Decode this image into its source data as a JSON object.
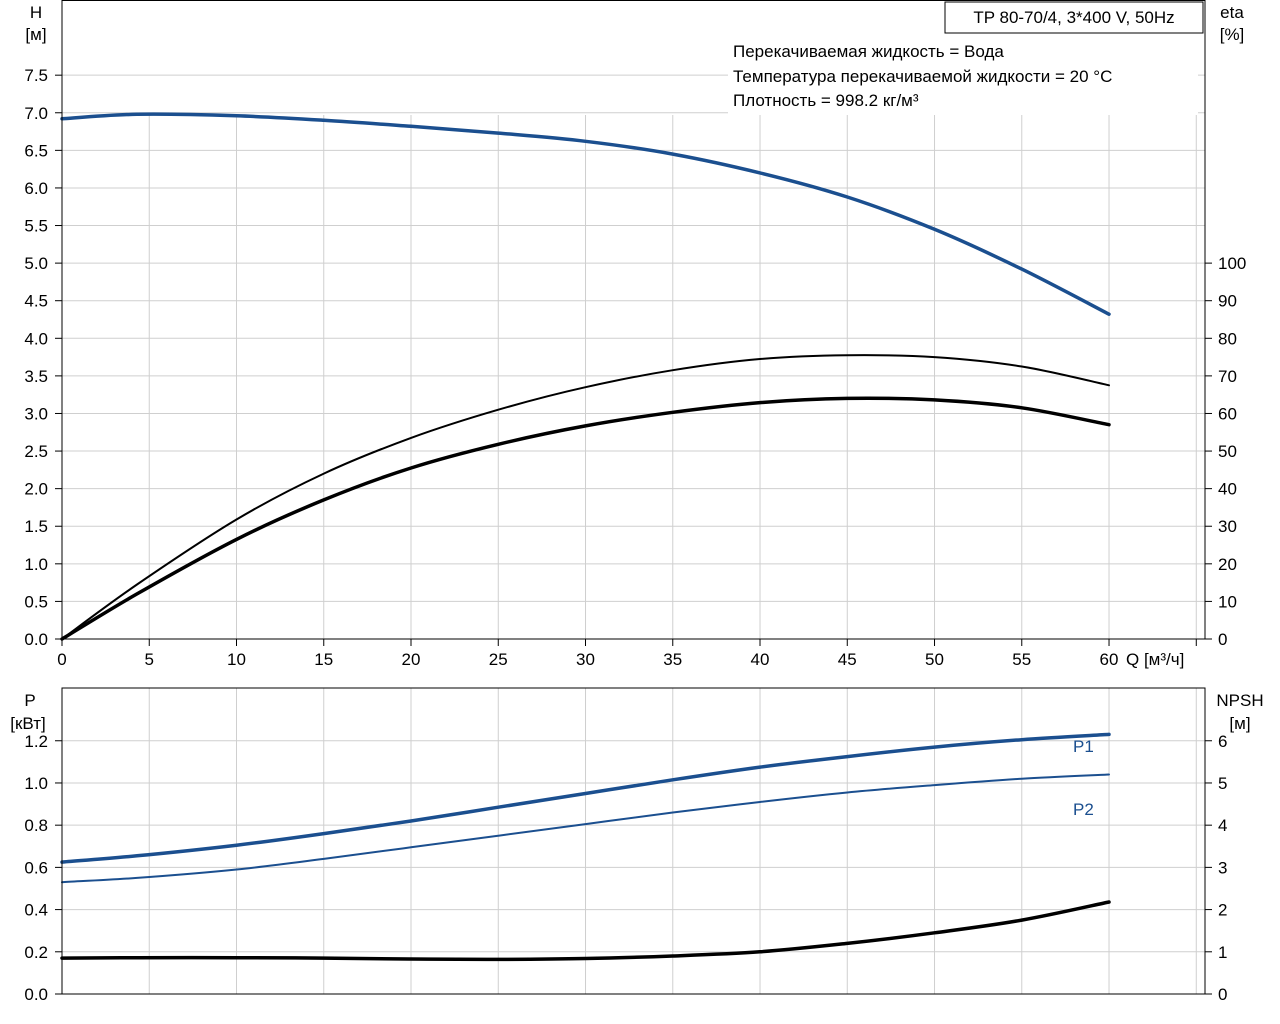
{
  "chart_data": [
    {
      "type": "line",
      "title": "TP 80-70/4, 3*400 V, 50Hz",
      "annotations": [
        "Перекачиваемая жидкость = Вода",
        "Температура перекачиваемой жидкости = 20 °C",
        "Плотность = 998.2 кг/м³"
      ],
      "xlabel": "Q [м³/ч]",
      "x_ticks": [
        "0",
        "5",
        "10",
        "15",
        "20",
        "25",
        "30",
        "35",
        "40",
        "45",
        "50",
        "55",
        "60"
      ],
      "xlim": [
        0,
        65.5
      ],
      "ylabel": [
        "H",
        "[м]"
      ],
      "ylim": [
        0,
        8.5
      ],
      "y_ticks": [
        "0.0",
        "0.5",
        "1.0",
        "1.5",
        "2.0",
        "2.5",
        "3.0",
        "3.5",
        "4.0",
        "4.5",
        "5.0",
        "5.5",
        "6.0",
        "6.5",
        "7.0",
        "7.5"
      ],
      "y2label": [
        "eta",
        "[%]"
      ],
      "y2lim": [
        0,
        170
      ],
      "y2_ticks": [
        "0",
        "10",
        "20",
        "30",
        "40",
        "50",
        "60",
        "70",
        "80",
        "90",
        "100"
      ],
      "grid": true,
      "series": [
        {
          "key": "H",
          "axis": "left",
          "color": "#1b4f8f",
          "width": 3.5,
          "x": [
            0,
            4.3,
            10,
            15,
            20,
            25,
            30,
            35,
            40,
            45,
            50,
            55,
            60
          ],
          "y": [
            6.92,
            6.98,
            6.96,
            6.9,
            6.82,
            6.73,
            6.62,
            6.45,
            6.2,
            5.88,
            5.45,
            4.92,
            4.32
          ]
        },
        {
          "key": "eta_1",
          "axis": "right",
          "color": "#000000",
          "width": 2,
          "x": [
            0,
            4.3,
            10,
            15,
            20,
            25,
            30,
            35,
            40,
            45,
            50,
            55,
            60
          ],
          "y": [
            0,
            14.5,
            31.8,
            44,
            53.5,
            61,
            67,
            71.5,
            74.5,
            75.5,
            75,
            72.5,
            67.5
          ]
        },
        {
          "key": "eta_2",
          "axis": "right",
          "color": "#000000",
          "width": 3.5,
          "x": [
            0,
            4.3,
            10,
            15,
            20,
            25,
            30,
            35,
            40,
            45,
            50,
            55,
            60
          ],
          "y": [
            0,
            12,
            26.5,
            37,
            45.5,
            51.8,
            56.7,
            60.3,
            62.9,
            64,
            63.6,
            61.5,
            57
          ]
        }
      ]
    },
    {
      "type": "line",
      "xlim": [
        0,
        65.5
      ],
      "ylabel": [
        "P",
        "[кВт]"
      ],
      "ylim": [
        0,
        1.45
      ],
      "y_ticks": [
        "0.0",
        "0.2",
        "0.4",
        "0.6",
        "0.8",
        "1.0",
        "1.2"
      ],
      "y2label": [
        "NPSH",
        "[м]"
      ],
      "y2lim": [
        0,
        7.25
      ],
      "y2_ticks": [
        "0",
        "1",
        "2",
        "3",
        "4",
        "5",
        "6"
      ],
      "grid": true,
      "series": [
        {
          "name": "P1",
          "axis": "left",
          "color": "#1b4f8f",
          "width": 3.5,
          "x": [
            0,
            4.3,
            10,
            15,
            20,
            25,
            30,
            35,
            40,
            45,
            50,
            55,
            60
          ],
          "y": [
            0.625,
            0.655,
            0.705,
            0.76,
            0.82,
            0.885,
            0.95,
            1.015,
            1.075,
            1.125,
            1.17,
            1.205,
            1.23
          ]
        },
        {
          "name": "P2",
          "axis": "left",
          "color": "#1b4f8f",
          "width": 2,
          "x": [
            0,
            4.3,
            10,
            15,
            20,
            25,
            30,
            35,
            40,
            45,
            50,
            55,
            60
          ],
          "y": [
            0.53,
            0.55,
            0.59,
            0.64,
            0.695,
            0.75,
            0.805,
            0.86,
            0.91,
            0.955,
            0.99,
            1.02,
            1.04
          ]
        },
        {
          "key": "NPSH",
          "axis": "right",
          "color": "#000000",
          "width": 3.5,
          "x": [
            0,
            4.3,
            10,
            15,
            20,
            25,
            30,
            35,
            40,
            45,
            50,
            55,
            60
          ],
          "y": [
            0.85,
            0.86,
            0.86,
            0.85,
            0.83,
            0.82,
            0.84,
            0.9,
            1.0,
            1.2,
            1.45,
            1.75,
            2.18
          ]
        }
      ]
    }
  ]
}
